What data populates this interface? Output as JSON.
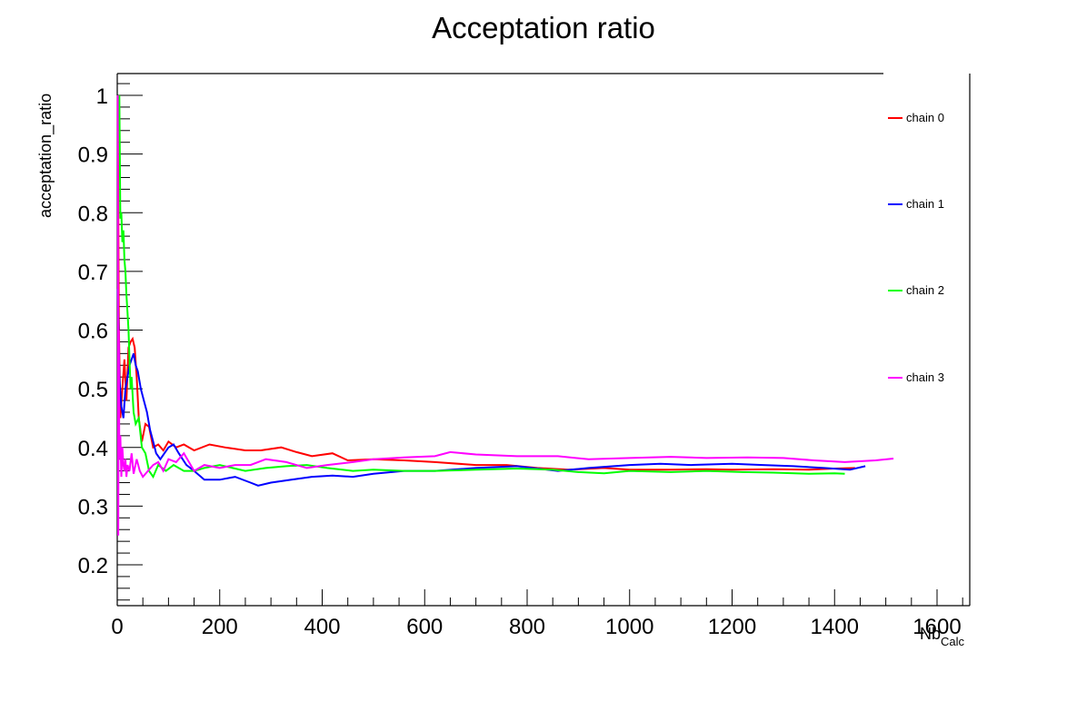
{
  "chart_data": {
    "type": "line",
    "title": "Acceptation ratio",
    "xlabel": "Nb",
    "xlabel_subscript": "Calc",
    "ylabel": "acceptation_ratio",
    "xlim": [
      0,
      1670
    ],
    "ylim": [
      0.13,
      1.04
    ],
    "x_ticks": [
      0,
      200,
      400,
      600,
      800,
      1000,
      1200,
      1400,
      1600
    ],
    "y_ticks": [
      0.2,
      0.3,
      0.4,
      0.5,
      0.6,
      0.7,
      0.8,
      0.9,
      1
    ],
    "grid": false,
    "legend_position": "right",
    "series": [
      {
        "name": "chain 0",
        "color": "#ff0000",
        "x": [
          1,
          3,
          6,
          10,
          14,
          18,
          22,
          26,
          30,
          34,
          38,
          42,
          48,
          55,
          62,
          70,
          80,
          90,
          100,
          115,
          130,
          150,
          180,
          210,
          250,
          280,
          320,
          350,
          380,
          420,
          450,
          500,
          560,
          620,
          700,
          760,
          820,
          880,
          950,
          1000,
          1080,
          1150,
          1200,
          1280,
          1350,
          1400,
          1440
        ],
        "y": [
          1.0,
          0.62,
          0.45,
          0.5,
          0.55,
          0.48,
          0.57,
          0.58,
          0.585,
          0.57,
          0.52,
          0.45,
          0.41,
          0.44,
          0.435,
          0.4,
          0.405,
          0.395,
          0.41,
          0.4,
          0.405,
          0.395,
          0.405,
          0.4,
          0.395,
          0.395,
          0.4,
          0.392,
          0.385,
          0.39,
          0.378,
          0.38,
          0.378,
          0.375,
          0.37,
          0.37,
          0.365,
          0.362,
          0.365,
          0.362,
          0.362,
          0.363,
          0.362,
          0.363,
          0.362,
          0.364,
          0.365
        ]
      },
      {
        "name": "chain 1",
        "color": "#0000ff",
        "x": [
          1,
          4,
          8,
          12,
          16,
          20,
          24,
          28,
          32,
          36,
          40,
          46,
          52,
          58,
          64,
          70,
          76,
          84,
          92,
          100,
          110,
          120,
          135,
          150,
          170,
          200,
          230,
          260,
          275,
          300,
          340,
          380,
          420,
          460,
          500,
          560,
          620,
          700,
          780,
          860,
          920,
          1000,
          1060,
          1120,
          1200,
          1260,
          1320,
          1380,
          1430,
          1460
        ],
        "y": [
          0.67,
          0.52,
          0.47,
          0.45,
          0.5,
          0.52,
          0.54,
          0.55,
          0.56,
          0.54,
          0.53,
          0.5,
          0.48,
          0.46,
          0.43,
          0.41,
          0.39,
          0.38,
          0.39,
          0.4,
          0.405,
          0.39,
          0.37,
          0.36,
          0.345,
          0.345,
          0.35,
          0.34,
          0.335,
          0.34,
          0.345,
          0.35,
          0.352,
          0.35,
          0.355,
          0.36,
          0.36,
          0.365,
          0.368,
          0.36,
          0.365,
          0.37,
          0.372,
          0.37,
          0.372,
          0.37,
          0.368,
          0.365,
          0.362,
          0.368
        ]
      },
      {
        "name": "chain 2",
        "color": "#00ff00",
        "x": [
          4,
          6,
          8,
          10,
          12,
          14,
          16,
          18,
          20,
          22,
          24,
          26,
          28,
          32,
          36,
          42,
          48,
          55,
          62,
          70,
          80,
          95,
          110,
          130,
          150,
          170,
          200,
          250,
          290,
          330,
          370,
          410,
          460,
          500,
          560,
          620,
          700,
          780,
          850,
          900,
          950,
          1000,
          1080,
          1150,
          1220,
          1280,
          1350,
          1400,
          1420
        ],
        "y": [
          1.0,
          0.79,
          0.8,
          0.75,
          0.77,
          0.72,
          0.7,
          0.66,
          0.63,
          0.6,
          0.55,
          0.5,
          0.52,
          0.46,
          0.44,
          0.45,
          0.4,
          0.39,
          0.36,
          0.35,
          0.37,
          0.36,
          0.37,
          0.36,
          0.36,
          0.365,
          0.37,
          0.36,
          0.365,
          0.368,
          0.37,
          0.365,
          0.36,
          0.362,
          0.36,
          0.36,
          0.362,
          0.364,
          0.362,
          0.358,
          0.356,
          0.36,
          0.358,
          0.36,
          0.358,
          0.357,
          0.355,
          0.356,
          0.355
        ]
      },
      {
        "name": "chain 3",
        "color": "#ff00ff",
        "x": [
          1,
          2,
          3,
          4,
          6,
          8,
          10,
          12,
          14,
          16,
          18,
          20,
          24,
          28,
          32,
          38,
          44,
          50,
          60,
          70,
          80,
          90,
          100,
          115,
          130,
          150,
          170,
          200,
          230,
          260,
          290,
          330,
          370,
          410,
          460,
          500,
          560,
          620,
          650,
          700,
          780,
          860,
          920,
          1000,
          1080,
          1150,
          1230,
          1300,
          1360,
          1420,
          1480,
          1515
        ],
        "y": [
          1.0,
          0.25,
          0.6,
          0.38,
          0.42,
          0.35,
          0.4,
          0.37,
          0.36,
          0.38,
          0.35,
          0.37,
          0.36,
          0.39,
          0.355,
          0.38,
          0.36,
          0.35,
          0.36,
          0.37,
          0.375,
          0.36,
          0.38,
          0.375,
          0.39,
          0.36,
          0.37,
          0.365,
          0.37,
          0.37,
          0.38,
          0.375,
          0.365,
          0.37,
          0.375,
          0.38,
          0.383,
          0.385,
          0.392,
          0.388,
          0.385,
          0.385,
          0.38,
          0.382,
          0.384,
          0.382,
          0.383,
          0.382,
          0.378,
          0.375,
          0.378,
          0.381
        ]
      }
    ]
  },
  "legend": {
    "items": [
      {
        "label": "chain 0",
        "color": "#ff0000"
      },
      {
        "label": "chain 1",
        "color": "#0000ff"
      },
      {
        "label": "chain 2",
        "color": "#00ff00"
      },
      {
        "label": "chain 3",
        "color": "#ff00ff"
      }
    ]
  }
}
